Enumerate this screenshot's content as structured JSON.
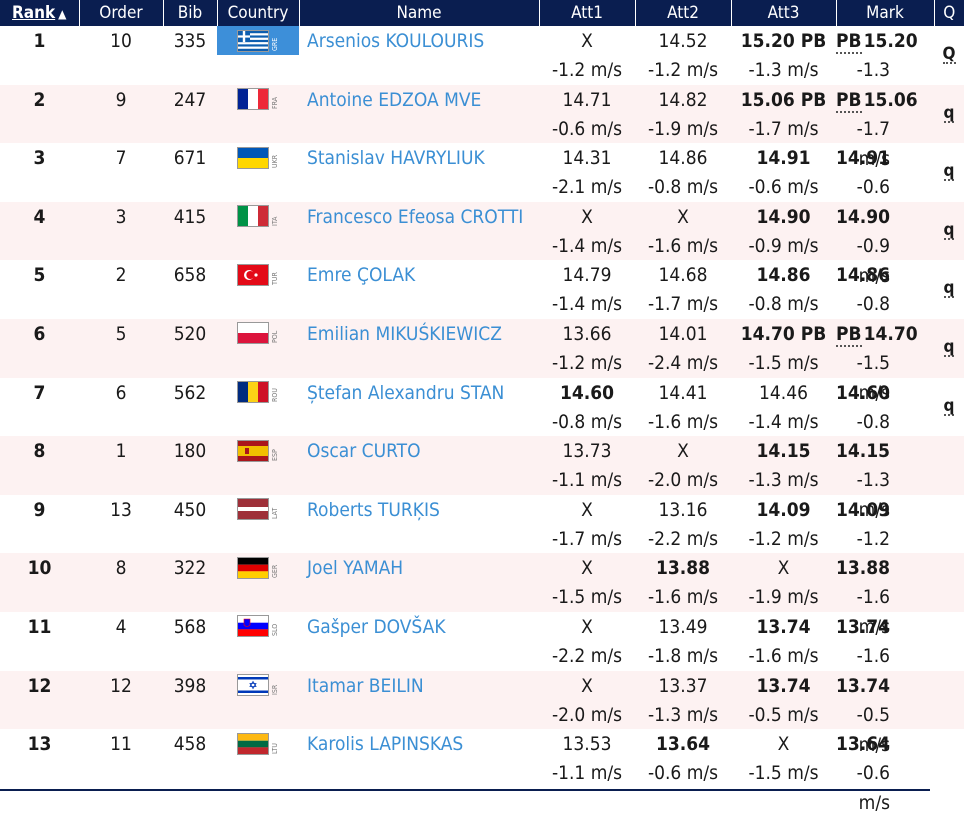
{
  "headers": {
    "rank": "Rank",
    "sort_indicator": "▲",
    "order": "Order",
    "bib": "Bib",
    "country": "Country",
    "name": "Name",
    "att1": "Att1",
    "att2": "Att2",
    "att3": "Att3",
    "mark": "Mark",
    "q": "Q"
  },
  "rows": [
    {
      "rank": "1",
      "order": "10",
      "bib": "335",
      "code": "GRE",
      "name": "Arsenios KOULOURIS",
      "a1": "X",
      "w1": "-1.2 m/s",
      "a2": "14.52",
      "w2": "-1.2 m/s",
      "a3": "15.20 PB",
      "w3": "-1.3 m/s",
      "pb": "PB",
      "mark": "15.20",
      "wm": "-1.3 m/s",
      "q": "Q"
    },
    {
      "rank": "2",
      "order": "9",
      "bib": "247",
      "code": "FRA",
      "name": "Antoine EDZOA MVE",
      "a1": "14.71",
      "w1": "-0.6 m/s",
      "a2": "14.82",
      "w2": "-1.9 m/s",
      "a3": "15.06 PB",
      "w3": "-1.7 m/s",
      "pb": "PB",
      "mark": "15.06",
      "wm": "-1.7 m/s",
      "q": "q"
    },
    {
      "rank": "3",
      "order": "7",
      "bib": "671",
      "code": "UKR",
      "name": "Stanislav HAVRYLIUK",
      "a1": "14.31",
      "w1": "-2.1 m/s",
      "a2": "14.86",
      "w2": "-0.8 m/s",
      "a3": "14.91",
      "w3": "-0.6 m/s",
      "pb": "",
      "mark": "14.91",
      "wm": "-0.6 m/s",
      "q": "q"
    },
    {
      "rank": "4",
      "order": "3",
      "bib": "415",
      "code": "ITA",
      "name": "Francesco Efeosa CROTTI",
      "a1": "X",
      "w1": "-1.4 m/s",
      "a2": "X",
      "w2": "-1.6 m/s",
      "a3": "14.90",
      "w3": "-0.9 m/s",
      "pb": "",
      "mark": "14.90",
      "wm": "-0.9 m/s",
      "q": "q"
    },
    {
      "rank": "5",
      "order": "2",
      "bib": "658",
      "code": "TUR",
      "name": "Emre ÇOLAK",
      "a1": "14.79",
      "w1": "-1.4 m/s",
      "a2": "14.68",
      "w2": "-1.7 m/s",
      "a3": "14.86",
      "w3": "-0.8 m/s",
      "pb": "",
      "mark": "14.86",
      "wm": "-0.8 m/s",
      "q": "q"
    },
    {
      "rank": "6",
      "order": "5",
      "bib": "520",
      "code": "POL",
      "name": "Emilian MIKUŚKIEWICZ",
      "a1": "13.66",
      "w1": "-1.2 m/s",
      "a2": "14.01",
      "w2": "-2.4 m/s",
      "a3": "14.70 PB",
      "w3": "-1.5 m/s",
      "pb": "PB",
      "mark": "14.70",
      "wm": "-1.5 m/s",
      "q": "q"
    },
    {
      "rank": "7",
      "order": "6",
      "bib": "562",
      "code": "ROU",
      "name": "Ștefan Alexandru STAN",
      "a1": "14.60",
      "w1": "-0.8 m/s",
      "a2": "14.41",
      "w2": "-1.6 m/s",
      "a3": "14.46",
      "w3": "-1.4 m/s",
      "pb": "",
      "mark": "14.60",
      "wm": "-0.8 m/s",
      "q": "q"
    },
    {
      "rank": "8",
      "order": "1",
      "bib": "180",
      "code": "ESP",
      "name": "Oscar CURTO",
      "a1": "13.73",
      "w1": "-1.1 m/s",
      "a2": "X",
      "w2": "-2.0 m/s",
      "a3": "14.15",
      "w3": "-1.3 m/s",
      "pb": "",
      "mark": "14.15",
      "wm": "-1.3 m/s",
      "q": ""
    },
    {
      "rank": "9",
      "order": "13",
      "bib": "450",
      "code": "LAT",
      "name": "Roberts TURĶIS",
      "a1": "X",
      "w1": "-1.7 m/s",
      "a2": "13.16",
      "w2": "-2.2 m/s",
      "a3": "14.09",
      "w3": "-1.2 m/s",
      "pb": "",
      "mark": "14.09",
      "wm": "-1.2 m/s",
      "q": ""
    },
    {
      "rank": "10",
      "order": "8",
      "bib": "322",
      "code": "GER",
      "name": "Joel YAMAH",
      "a1": "X",
      "w1": "-1.5 m/s",
      "a2": "13.88",
      "w2": "-1.6 m/s",
      "a3": "X",
      "w3": "-1.9 m/s",
      "pb": "",
      "mark": "13.88",
      "wm": "-1.6 m/s",
      "q": ""
    },
    {
      "rank": "11",
      "order": "4",
      "bib": "568",
      "code": "SLO",
      "name": "Gašper DOVŠAK",
      "a1": "X",
      "w1": "-2.2 m/s",
      "a2": "13.49",
      "w2": "-1.8 m/s",
      "a3": "13.74",
      "w3": "-1.6 m/s",
      "pb": "",
      "mark": "13.74",
      "wm": "-1.6 m/s",
      "q": ""
    },
    {
      "rank": "12",
      "order": "12",
      "bib": "398",
      "code": "ISR",
      "name": "Itamar BEILIN",
      "a1": "X",
      "w1": "-2.0 m/s",
      "a2": "13.37",
      "w2": "-1.3 m/s",
      "a3": "13.74",
      "w3": "-0.5 m/s",
      "pb": "",
      "mark": "13.74",
      "wm": "-0.5 m/s",
      "q": ""
    },
    {
      "rank": "13",
      "order": "11",
      "bib": "458",
      "code": "LTU",
      "name": "Karolis LAPINSKAS",
      "a1": "13.53",
      "w1": "-1.1 m/s",
      "a2": "13.64",
      "w2": "-0.6 m/s",
      "a3": "X",
      "w3": "-1.5 m/s",
      "pb": "",
      "mark": "13.64",
      "wm": "-0.6 m/s",
      "q": ""
    }
  ],
  "best_attempt": [
    "a3",
    "a3",
    "a3",
    "a3",
    "a3",
    "a3",
    "a1",
    "a3",
    "a3",
    "a2",
    "a3",
    "a3",
    "a2"
  ]
}
